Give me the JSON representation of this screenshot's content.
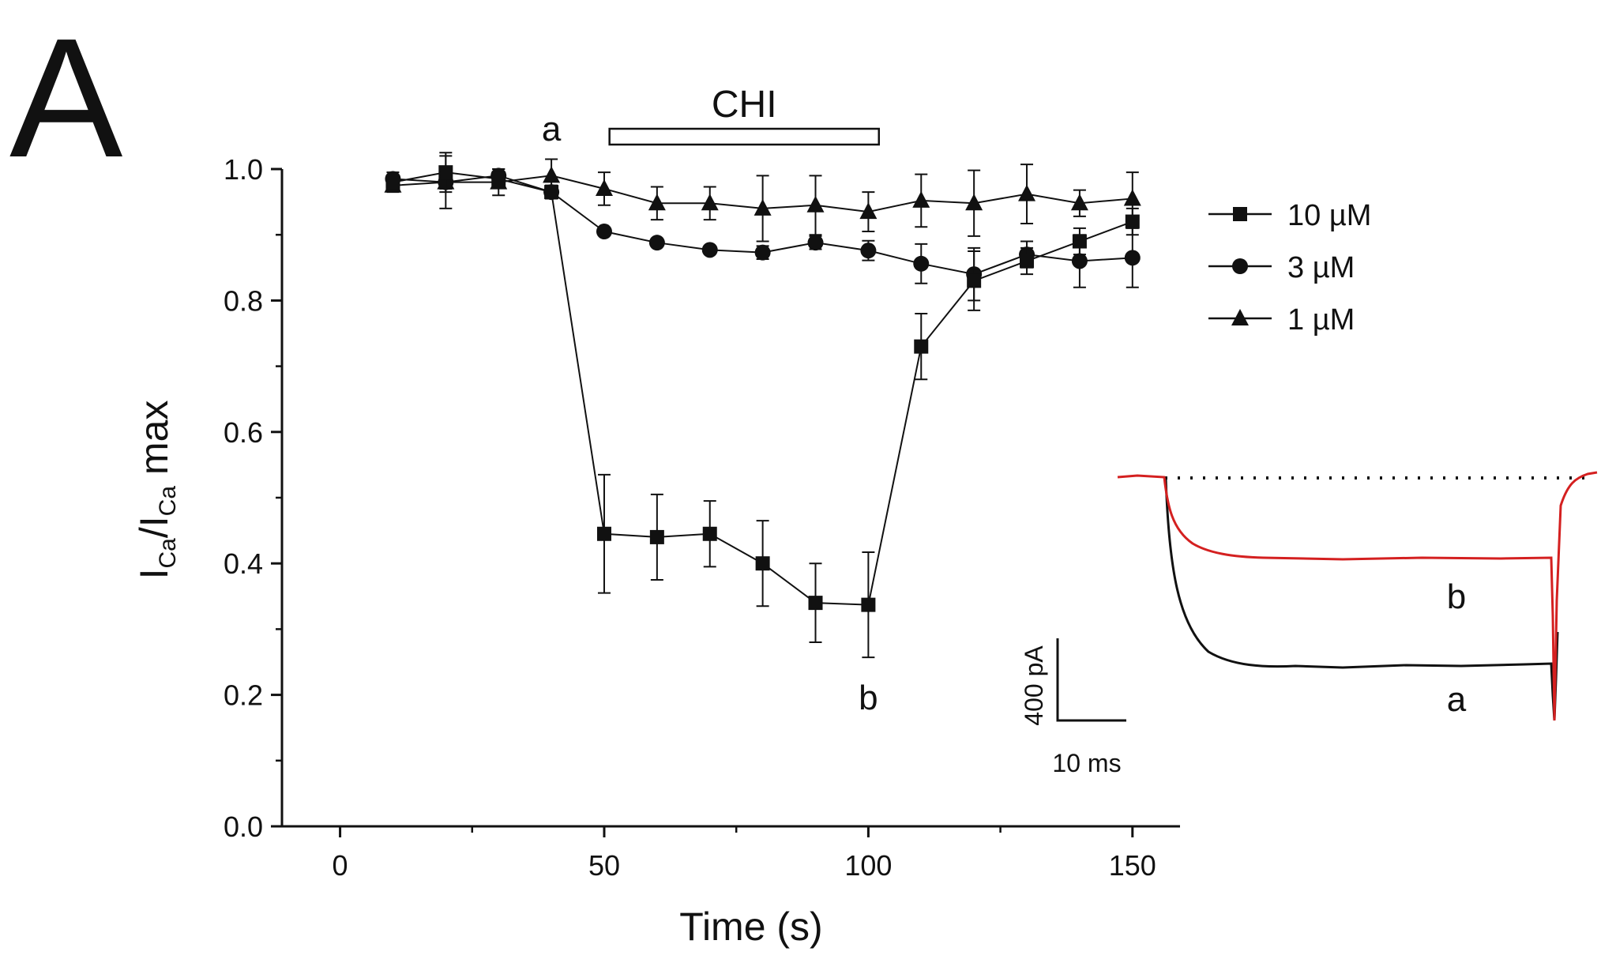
{
  "panel_label": "A",
  "chart_data": {
    "type": "line",
    "title": "",
    "xlabel": "Time (s)",
    "ylabel": {
      "main": "I",
      "sub1": "Ca",
      "mid": "/I",
      "sub2": "Ca",
      "end": " max"
    },
    "xlim": [
      -11,
      159
    ],
    "ylim": [
      0,
      1.0
    ],
    "xticks": [
      0,
      50,
      100,
      150
    ],
    "xtick_labels": [
      "0",
      "50",
      "100",
      "150"
    ],
    "yticks": [
      0,
      0.2,
      0.4,
      0.6,
      0.8,
      1.0
    ],
    "ytick_labels": [
      "0.0",
      "0.2",
      "0.4",
      "0.6",
      "0.8",
      "1.0"
    ],
    "grid": false,
    "legend_position": "top-right",
    "x": [
      10,
      20,
      30,
      40,
      50,
      60,
      70,
      80,
      90,
      100,
      110,
      120,
      130,
      140,
      150
    ],
    "series": [
      {
        "name": "10 µM",
        "marker": "square",
        "values": [
          0.98,
          0.995,
          0.985,
          0.965,
          0.445,
          0.44,
          0.445,
          0.4,
          0.34,
          0.337,
          0.73,
          0.83,
          0.86,
          0.89,
          0.92
        ],
        "errors": [
          0.01,
          0.03,
          0.01,
          0.01,
          0.09,
          0.065,
          0.05,
          0.065,
          0.06,
          0.08,
          0.05,
          0.045,
          0.02,
          0.02,
          0.02
        ]
      },
      {
        "name": "3 µM",
        "marker": "circle",
        "values": [
          0.985,
          0.98,
          0.99,
          0.965,
          0.905,
          0.888,
          0.877,
          0.873,
          0.888,
          0.876,
          0.856,
          0.84,
          0.87,
          0.86,
          0.865
        ],
        "errors": [
          0.01,
          0.01,
          0.01,
          0.01,
          0.005,
          0.005,
          0.005,
          0.01,
          0.01,
          0.015,
          0.03,
          0.04,
          0.02,
          0.04,
          0.045
        ]
      },
      {
        "name": "1 µM",
        "marker": "triangle",
        "values": [
          0.975,
          0.98,
          0.98,
          0.99,
          0.97,
          0.948,
          0.948,
          0.94,
          0.945,
          0.935,
          0.952,
          0.948,
          0.962,
          0.948,
          0.955
        ],
        "errors": [
          0.01,
          0.04,
          0.02,
          0.025,
          0.025,
          0.025,
          0.025,
          0.05,
          0.045,
          0.03,
          0.04,
          0.05,
          0.045,
          0.02,
          0.04
        ]
      }
    ],
    "annotations": {
      "drug_bar": {
        "label": "CHI",
        "start": 51,
        "end": 102
      },
      "point_a": {
        "label": "a",
        "x": 40
      },
      "point_b": {
        "label": "b",
        "x": 100
      }
    },
    "inset": {
      "trace_a_label": "a",
      "trace_b_label": "b",
      "trace_a_color": "#111111",
      "trace_b_color": "#d42020",
      "scale_y": "400 pA",
      "scale_x": "10 ms"
    }
  }
}
